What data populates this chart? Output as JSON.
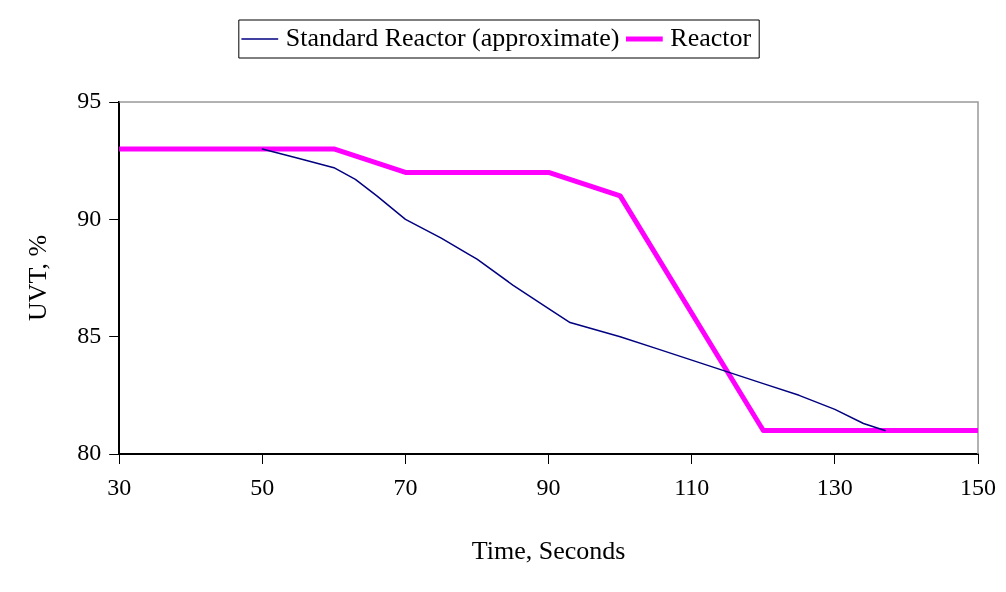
{
  "chart_data": {
    "type": "line",
    "xlabel": "Time, Seconds",
    "ylabel": "UVT, %",
    "xlim": [
      30,
      150
    ],
    "xticks": [
      30,
      50,
      70,
      90,
      110,
      130,
      150
    ],
    "ylim": [
      80,
      95
    ],
    "yticks": [
      80,
      85,
      90,
      95
    ],
    "grid": false,
    "legend": "top",
    "marker": "none",
    "line_style": "solid",
    "series": [
      {
        "name": "Standard Reactor (approximate)",
        "color": "#000080",
        "x": [
          50,
          55,
          60,
          63,
          66,
          70,
          75,
          80,
          85,
          90,
          93,
          100,
          105,
          110,
          115,
          120,
          125,
          130,
          134,
          137
        ],
        "values": [
          93,
          92.6,
          92.2,
          91.7,
          91,
          90,
          89.2,
          88.3,
          87.2,
          86.2,
          85.6,
          85,
          84.5,
          84,
          83.5,
          83,
          82.5,
          81.9,
          81.3,
          81
        ]
      },
      {
        "name": "Reactor",
        "color": "#ff00ff",
        "x": [
          30,
          60,
          70,
          90,
          100,
          120,
          150
        ],
        "values": [
          93,
          93,
          92,
          92,
          91,
          81,
          81
        ]
      }
    ]
  }
}
